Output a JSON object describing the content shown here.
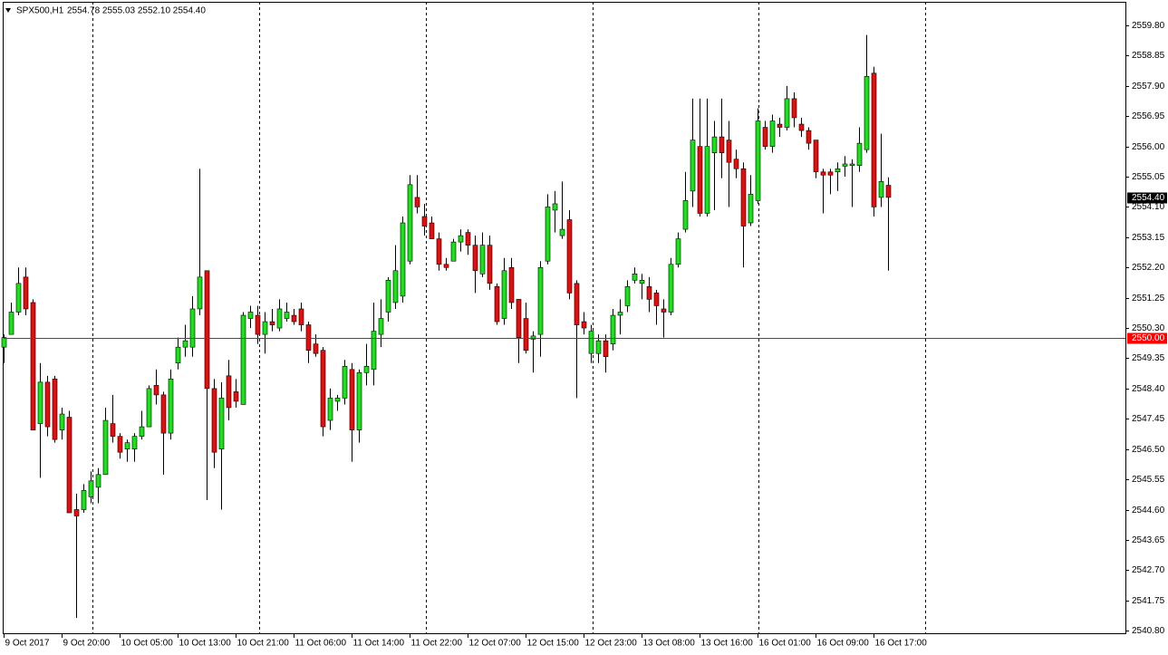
{
  "chart_data": {
    "type": "candlestick",
    "title": "SPX500,H1",
    "info": "2554.78 2555.03 2552.10 2554.40",
    "up_color": "#22dd22",
    "down_color": "#dd1111",
    "ylim": [
      2540.69,
      2560.54
    ],
    "yticks": [
      {
        "value": 2559.8,
        "label": "2559.80"
      },
      {
        "value": 2558.85,
        "label": "2558.85"
      },
      {
        "value": 2557.9,
        "label": "2557.90"
      },
      {
        "value": 2556.95,
        "label": "2556.95"
      },
      {
        "value": 2556,
        "label": "2556.00"
      },
      {
        "value": 2555.05,
        "label": "2555.05"
      },
      {
        "value": 2554.1,
        "label": "2554.10"
      },
      {
        "value": 2553.15,
        "label": "2553.15"
      },
      {
        "value": 2552.2,
        "label": "2552.20"
      },
      {
        "value": 2551.25,
        "label": "2551.25"
      },
      {
        "value": 2550.3,
        "label": "2550.30"
      },
      {
        "value": 2549.35,
        "label": "2549.35"
      },
      {
        "value": 2548.4,
        "label": "2548.40"
      },
      {
        "value": 2547.45,
        "label": "2547.45"
      },
      {
        "value": 2546.5,
        "label": "2546.50"
      },
      {
        "value": 2545.55,
        "label": "2545.55"
      },
      {
        "value": 2544.6,
        "label": "2544.60"
      },
      {
        "value": 2543.65,
        "label": "2543.65"
      },
      {
        "value": 2542.7,
        "label": "2542.70"
      },
      {
        "value": 2541.75,
        "label": "2541.75"
      },
      {
        "value": 2540.8,
        "label": "2540.80"
      }
    ],
    "last_price": {
      "value": 2554.4,
      "label": "2554.40"
    },
    "level_line": {
      "value": 2550,
      "label": "2550.00",
      "color": "#ff0000"
    },
    "categories": [
      "9 Oct 2017",
      null,
      null,
      null,
      null,
      null,
      null,
      null,
      "9 Oct 20:00",
      null,
      null,
      null,
      null,
      null,
      null,
      null,
      "10 Oct 05:00",
      null,
      null,
      null,
      null,
      null,
      null,
      null,
      "10 Oct 13:00",
      null,
      null,
      null,
      null,
      null,
      null,
      null,
      "10 Oct 21:00",
      null,
      null,
      null,
      null,
      null,
      null,
      null,
      "11 Oct 06:00",
      null,
      null,
      null,
      null,
      null,
      null,
      null,
      "11 Oct 14:00",
      null,
      null,
      null,
      null,
      null,
      null,
      null,
      "11 Oct 22:00",
      null,
      null,
      null,
      null,
      null,
      null,
      null,
      "12 Oct 07:00",
      null,
      null,
      null,
      null,
      null,
      null,
      null,
      "12 Oct 15:00",
      null,
      null,
      null,
      null,
      null,
      null,
      null,
      "12 Oct 23:00",
      null,
      null,
      null,
      null,
      null,
      null,
      null,
      "13 Oct 08:00",
      null,
      null,
      null,
      null,
      null,
      null,
      null,
      "13 Oct 16:00",
      null,
      null,
      null,
      null,
      null,
      null,
      null,
      "16 Oct 01:00",
      null,
      null,
      null,
      null,
      null,
      null,
      null,
      "16 Oct 09:00",
      null,
      null,
      null,
      null,
      null,
      null,
      null,
      "16 Oct 17:00",
      null,
      null
    ],
    "open": [
      2549.7,
      2550.1,
      2550.8,
      2551.9,
      2551.1,
      2547.3,
      2548.6,
      2548.7,
      2547.1,
      2547.5,
      2544.6,
      2544.6,
      2545.0,
      2545.3,
      2545.7,
      2547.3,
      2546.9,
      2546.5,
      2546.5,
      2546.9,
      2547.2,
      2548.5,
      2548.2,
      2547.0,
      2549.2,
      2549.7,
      2549.7,
      2550.9,
      2552.1,
      2548.4,
      2546.5,
      2548.8,
      2548.3,
      2547.9,
      2550.6,
      2550.7,
      2550.1,
      2550.5,
      2550.3,
      2550.6,
      2550.7,
      2550.9,
      2550.4,
      2549.8,
      2549.6,
      2547.4,
      2548.0,
      2548.1,
      2549.0,
      2547.1,
      2548.9,
      2549.0,
      2550.1,
      2550.8,
      2551.1,
      2551.3,
      2552.4,
      2554.4,
      2553.8,
      2553.6,
      2553.1,
      2552.3,
      2552.4,
      2553.0,
      2553.3,
      2552.9,
      2552.0,
      2552.9,
      2551.6,
      2550.6,
      2552.2,
      2551.2,
      2550.6,
      2549.95,
      2550.1,
      2552.4,
      2554.0,
      2553.2,
      2553.7,
      2551.7,
      2550.5,
      2549.5,
      2549.5,
      2549.9,
      2549.8,
      2550.7,
      2551.0,
      2551.8,
      2551.7,
      2551.6,
      2551.4,
      2550.9,
      2550.8,
      2552.3,
      2553.4,
      2554.6,
      2556.0,
      2553.9,
      2555.8,
      2556.3,
      2556.2,
      2555.6,
      2555.3,
      2553.6,
      2554.3,
      2556.6,
      2556.0,
      2556.7,
      2556.6,
      2557.5,
      2556.7,
      2556.5,
      2556.2,
      2555.2,
      2555.2,
      2555.2,
      2555.38,
      2555.4,
      2555.4,
      2555.9,
      2558.3,
      2554.4,
      2554.78
    ],
    "high": [
      2550.1,
      2551.1,
      2552.2,
      2552.2,
      2551.2,
      2549.2,
      2548.8,
      2548.8,
      2547.8,
      2547.7,
      2545.1,
      2545.4,
      2545.8,
      2545.9,
      2547.8,
      2548.2,
      2547.0,
      2546.8,
      2547.0,
      2547.7,
      2548.5,
      2549.0,
      2548.3,
      2549.0,
      2550.0,
      2550.4,
      2551.3,
      2555.3,
      2552.1,
      2548.7,
      2548.6,
      2549.3,
      2548.7,
      2550.8,
      2551.0,
      2551.0,
      2550.8,
      2550.9,
      2551.2,
      2551.1,
      2550.9,
      2551.1,
      2550.5,
      2550.1,
      2549.7,
      2548.4,
      2548.2,
      2549.3,
      2549.2,
      2549.0,
      2549.8,
      2551.1,
      2551.2,
      2551.9,
      2552.9,
      2553.8,
      2555.1,
      2555.1,
      2554.2,
      2553.8,
      2553.3,
      2552.5,
      2553.1,
      2553.4,
      2553.4,
      2553.2,
      2553.3,
      2553.2,
      2551.7,
      2552.5,
      2552.5,
      2551.2,
      2551.1,
      2550.2,
      2552.4,
      2554.5,
      2554.6,
      2554.9,
      2554.0,
      2551.8,
      2550.8,
      2550.4,
      2550.1,
      2550.1,
      2550.9,
      2551.2,
      2551.8,
      2552.2,
      2552.0,
      2551.9,
      2551.5,
      2551.2,
      2552.5,
      2553.3,
      2555.2,
      2557.5,
      2557.5,
      2557.5,
      2556.8,
      2557.5,
      2556.8,
      2555.9,
      2555.5,
      2555.1,
      2557.2,
      2556.8,
      2557.0,
      2556.9,
      2557.9,
      2557.7,
      2556.9,
      2556.6,
      2556.2,
      2555.3,
      2555.3,
      2555.5,
      2555.7,
      2555.6,
      2556.6,
      2559.5,
      2558.5,
      2556.4,
      2555.03
    ],
    "low": [
      2549.2,
      2550.1,
      2550.7,
      2550.7,
      2547.1,
      2545.6,
      2546.9,
      2546.7,
      2546.8,
      2544.5,
      2541.2,
      2544.5,
      2544.8,
      2544.8,
      2545.7,
      2546.7,
      2546.2,
      2546.1,
      2546.1,
      2546.8,
      2547.2,
      2547.9,
      2545.7,
      2546.8,
      2549.0,
      2549.4,
      2549.4,
      2550.7,
      2544.9,
      2545.9,
      2544.6,
      2547.4,
      2547.8,
      2547.9,
      2550.3,
      2549.8,
      2549.5,
      2550.2,
      2550.2,
      2550.5,
      2550.4,
      2550.2,
      2549.2,
      2549.4,
      2546.9,
      2547.1,
      2547.7,
      2547.9,
      2546.1,
      2546.7,
      2548.5,
      2548.5,
      2549.7,
      2550.5,
      2550.9,
      2551.1,
      2552.3,
      2553.9,
      2553.2,
      2553.1,
      2552.1,
      2552.1,
      2552.4,
      2552.7,
      2552.6,
      2551.4,
      2551.9,
      2551.5,
      2550.4,
      2550.4,
      2550.9,
      2549.2,
      2549.5,
      2548.9,
      2549.4,
      2552.3,
      2553.3,
      2553.1,
      2551.2,
      2548.1,
      2550.1,
      2549.2,
      2549.2,
      2548.9,
      2549.6,
      2550.1,
      2550.8,
      2551.7,
      2551.2,
      2550.8,
      2550.4,
      2550.0,
      2550.7,
      2552.2,
      2553.3,
      2554.1,
      2553.8,
      2553.8,
      2554.0,
      2555.0,
      2554.1,
      2555.0,
      2552.2,
      2553.5,
      2554.2,
      2555.9,
      2555.8,
      2556.3,
      2556.5,
      2556.6,
      2556.3,
      2555.9,
      2555.0,
      2553.9,
      2554.5,
      2554.6,
      2555.05,
      2554.1,
      2555.2,
      2555.8,
      2553.8,
      2554.1,
      2552.1
    ],
    "close": [
      2550.0,
      2550.8,
      2551.7,
      2550.9,
      2547.1,
      2548.6,
      2547.2,
      2546.8,
      2547.6,
      2544.5,
      2544.4,
      2545.2,
      2545.5,
      2545.7,
      2547.4,
      2546.9,
      2546.4,
      2546.7,
      2546.9,
      2547.2,
      2548.4,
      2548.2,
      2547.0,
      2548.7,
      2549.7,
      2549.9,
      2550.9,
      2551.9,
      2548.4,
      2546.4,
      2548.1,
      2547.8,
      2548.0,
      2550.7,
      2550.8,
      2550.1,
      2550.5,
      2550.4,
      2550.9,
      2550.8,
      2550.5,
      2550.4,
      2549.6,
      2549.5,
      2547.2,
      2548.1,
      2548.1,
      2549.1,
      2547.1,
      2548.9,
      2549.1,
      2550.2,
      2550.6,
      2551.8,
      2552.1,
      2553.6,
      2554.8,
      2554.1,
      2553.5,
      2553.1,
      2552.3,
      2552.2,
      2553.0,
      2553.2,
      2552.9,
      2552.1,
      2552.9,
      2551.7,
      2550.5,
      2552.1,
      2551.1,
      2550.0,
      2549.6,
      2550.05,
      2552.2,
      2554.1,
      2554.2,
      2553.4,
      2551.4,
      2550.4,
      2550.3,
      2550.2,
      2549.9,
      2549.4,
      2550.7,
      2550.8,
      2551.6,
      2552.0,
      2551.8,
      2551.2,
      2551.0,
      2550.8,
      2552.3,
      2553.1,
      2554.3,
      2556.2,
      2553.9,
      2556.0,
      2556.3,
      2555.8,
      2555.5,
      2555.3,
      2553.5,
      2554.5,
      2556.8,
      2556.0,
      2556.8,
      2556.6,
      2557.5,
      2556.9,
      2556.5,
      2556.1,
      2555.2,
      2555.1,
      2555.1,
      2555.3,
      2555.45,
      2555.45,
      2556.1,
      2558.2,
      2554.1,
      2554.9,
      2554.4
    ]
  }
}
